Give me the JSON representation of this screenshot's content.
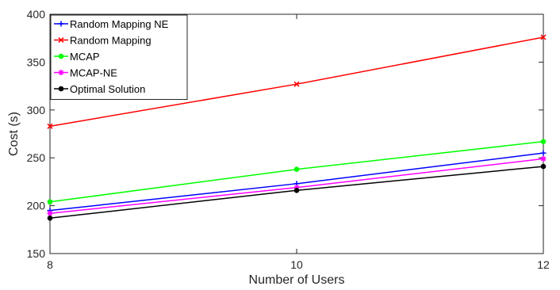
{
  "chart_data": {
    "type": "line",
    "title": "",
    "xlabel": "Number of Users",
    "ylabel": "Cost (s)",
    "x": [
      8,
      10,
      12
    ],
    "xlim": [
      8,
      12
    ],
    "ylim": [
      150,
      400
    ],
    "xticks": [
      "8",
      "10",
      "12"
    ],
    "yticks": [
      "150",
      "200",
      "250",
      "300",
      "350",
      "400"
    ],
    "grid": false,
    "legend_position": "top-left",
    "series": [
      {
        "name": "Random Mapping NE",
        "values": [
          195,
          223,
          255
        ],
        "color": "#0000ff",
        "marker": "plus"
      },
      {
        "name": "Random Mapping",
        "values": [
          283,
          327,
          376
        ],
        "color": "#ff0000",
        "marker": "x"
      },
      {
        "name": "MCAP",
        "values": [
          204,
          238,
          267
        ],
        "color": "#00ff00",
        "marker": "circle"
      },
      {
        "name": "MCAP-NE",
        "values": [
          192,
          219,
          249
        ],
        "color": "#ff00ff",
        "marker": "asterisk"
      },
      {
        "name": "Optimal Solution",
        "values": [
          187,
          216,
          241
        ],
        "color": "#000000",
        "marker": "circle"
      }
    ]
  }
}
